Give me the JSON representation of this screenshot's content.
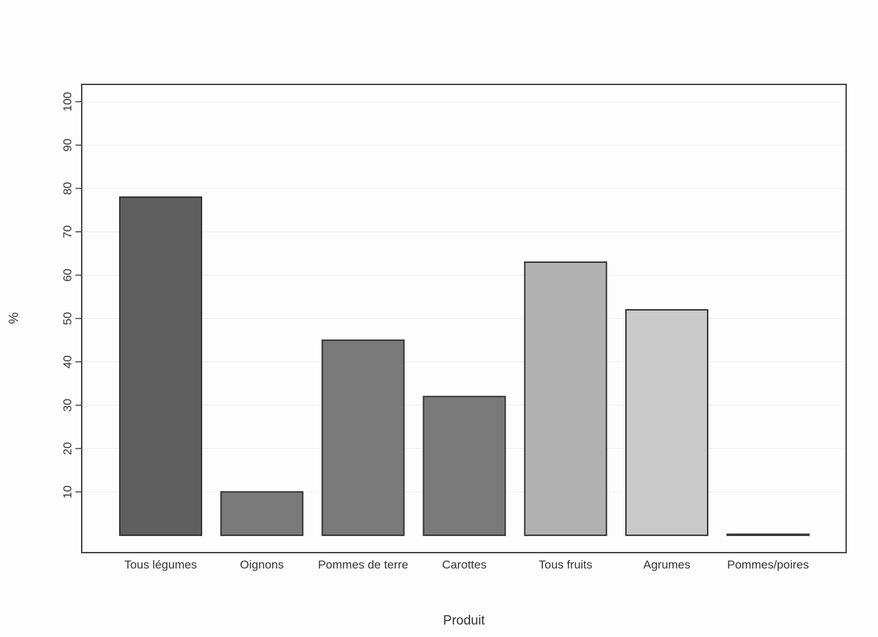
{
  "chart_data": {
    "type": "bar",
    "categories": [
      "Tous légumes",
      "Oignons",
      "Pommes de terre",
      "Carottes",
      "Tous fruits",
      "Agrumes",
      "Pommes/poires"
    ],
    "values": [
      78,
      10,
      45,
      32,
      63,
      52,
      0
    ],
    "bar_colors": [
      "#5f5f5f",
      "#7a7a7a",
      "#7a7a7a",
      "#7a7a7a",
      "#b1b1b1",
      "#c9c9c9",
      "#c9c9c9"
    ],
    "xlabel": "Produit",
    "ylabel": "%",
    "ylim": [
      -4,
      104
    ],
    "yticks": [
      10,
      20,
      30,
      40,
      50,
      60,
      70,
      80,
      90,
      100
    ],
    "grid": true,
    "legend": "none"
  }
}
